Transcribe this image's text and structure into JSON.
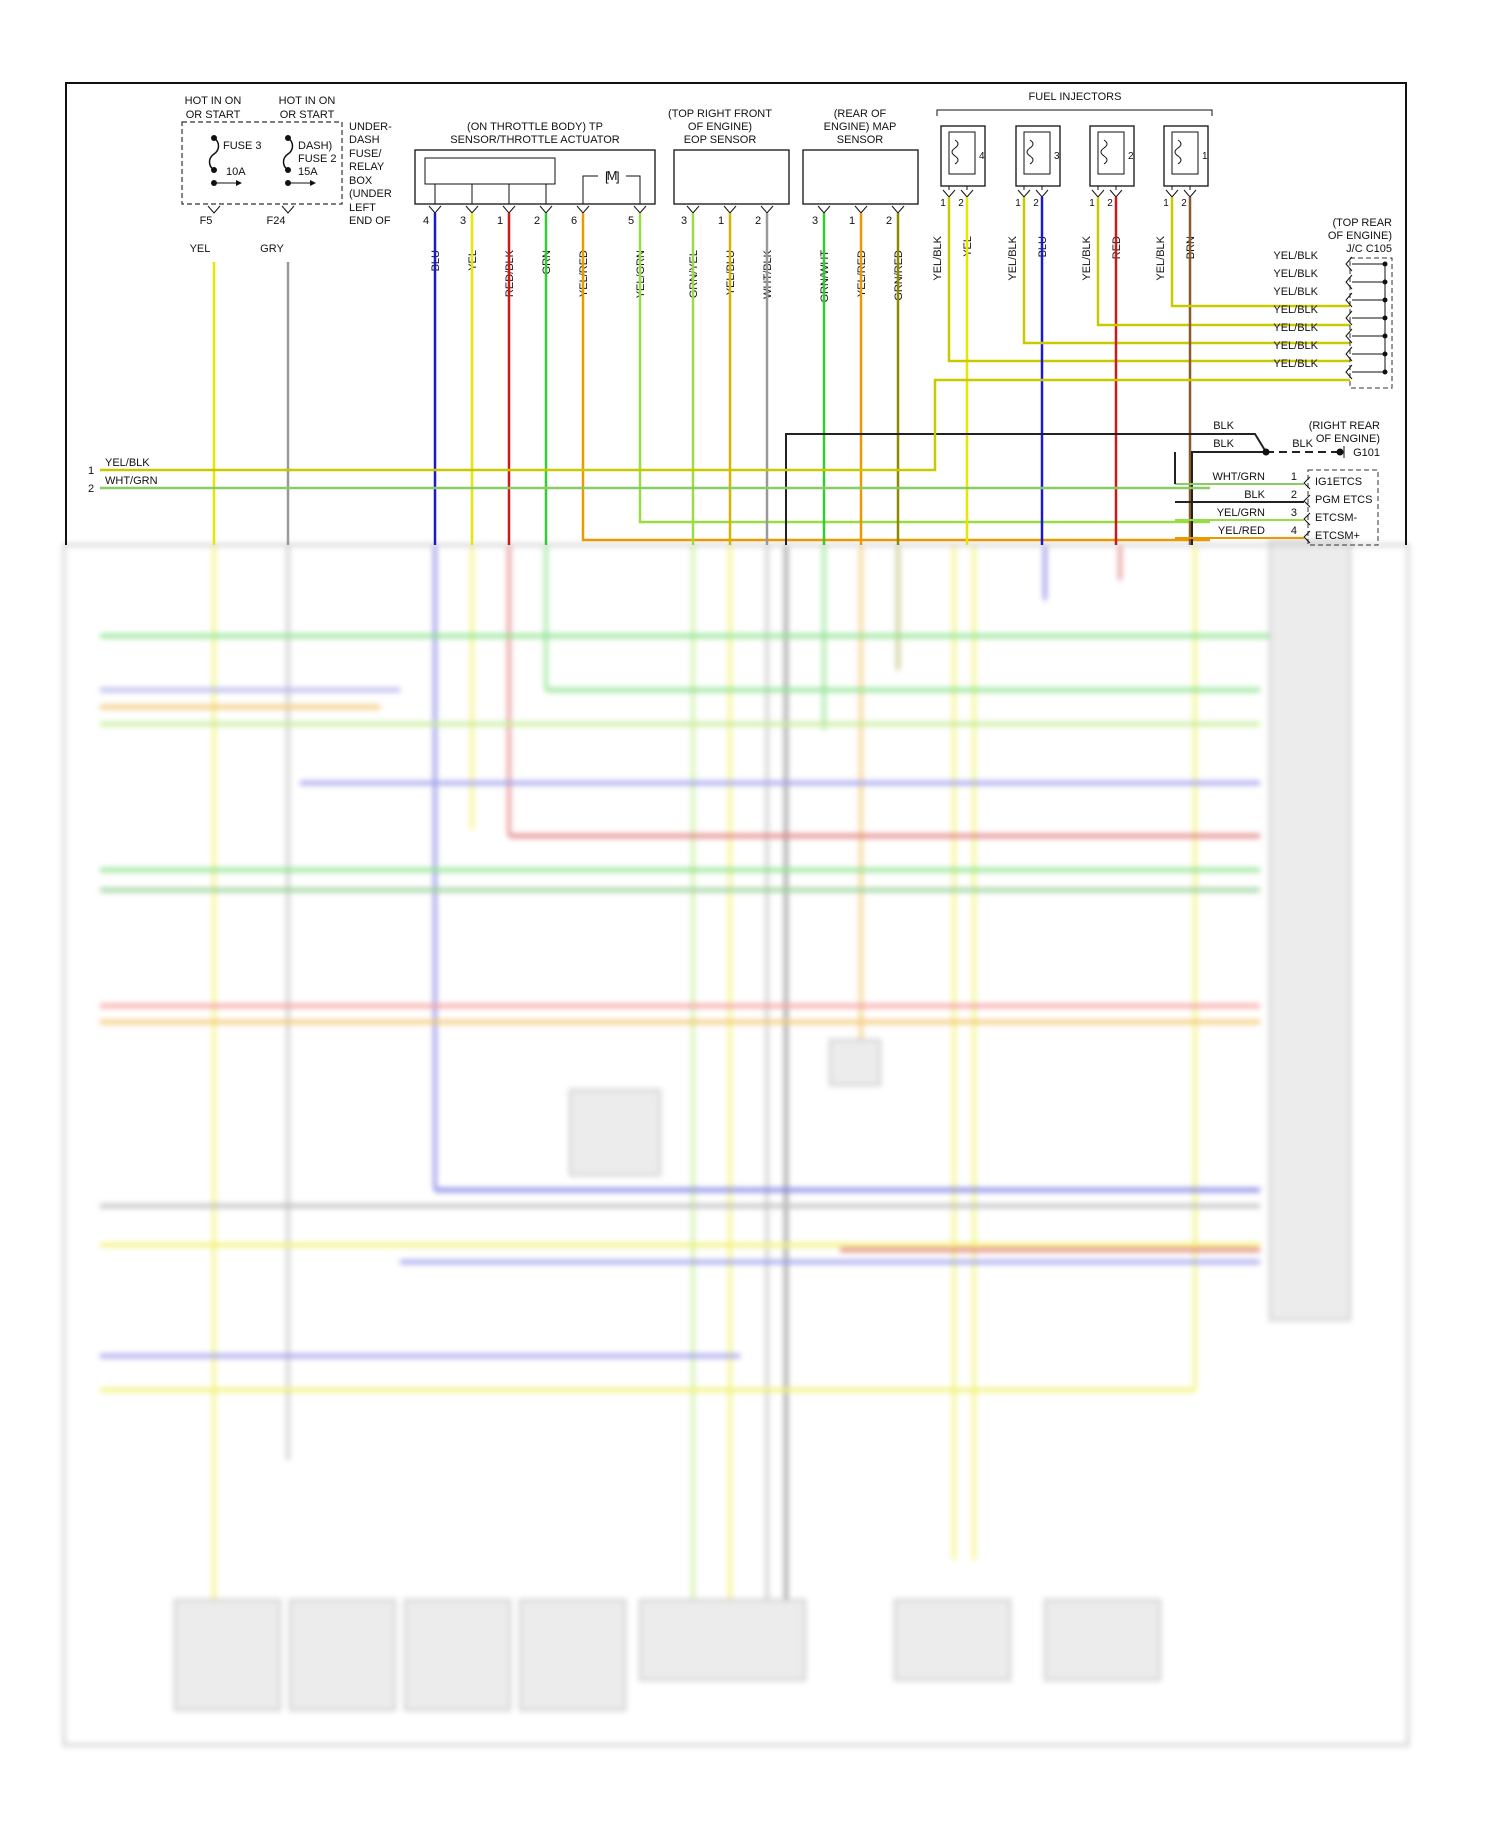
{
  "fuse_box": {
    "hot1": [
      "HOT IN ON",
      "OR START"
    ],
    "hot2": [
      "HOT IN ON",
      "OR START"
    ],
    "fuse3": [
      "FUSE 3",
      "10A"
    ],
    "fuse2": [
      "DASH)",
      "FUSE 2",
      "15A"
    ],
    "desc": [
      "UNDER-",
      "DASH",
      "FUSE/",
      "RELAY",
      "BOX",
      "(UNDER",
      "LEFT",
      "END OF"
    ],
    "pin1": "F5",
    "pin2": "F24",
    "wire1": "YEL",
    "wire2": "GRY"
  },
  "tp_sensor": {
    "title": [
      "(ON THROTTLE BODY) TP",
      "SENSOR/THROTTLE ACTUATOR"
    ],
    "motor": "M",
    "pins": [
      "4",
      "3",
      "1",
      "2",
      "6",
      "5"
    ],
    "wires": [
      "BLU",
      "YEL",
      "RED/BLK",
      "GRN",
      "YEL/RED",
      "YEL/GRN"
    ]
  },
  "eop_sensor": {
    "title": [
      "(TOP RIGHT FRONT",
      "OF ENGINE)",
      "EOP SENSOR"
    ],
    "pins": [
      "3",
      "1",
      "2"
    ],
    "wires": [
      "GRN/YEL",
      "YEL/BLU",
      "WHT/BLK"
    ]
  },
  "map_sensor": {
    "title": [
      "(REAR OF",
      "ENGINE) MAP",
      "SENSOR"
    ],
    "pins": [
      "3",
      "1",
      "2"
    ],
    "wires": [
      "GRN/WHT",
      "YEL/RED",
      "GRN/RED"
    ]
  },
  "injectors": {
    "title": "FUEL INJECTORS",
    "numbers": [
      "4",
      "3",
      "2",
      "1"
    ],
    "pins": [
      "1",
      "2"
    ],
    "wires": [
      "YEL/BLK",
      "YEL",
      "YEL/BLK",
      "BLU",
      "YEL/BLK",
      "RED",
      "YEL/BLK",
      "BRN"
    ]
  },
  "jc": {
    "title": [
      "(TOP REAR",
      "OF ENGINE)",
      "J/C C105"
    ],
    "wires": [
      "YEL/BLK",
      "YEL/BLK",
      "YEL/BLK",
      "YEL/BLK",
      "YEL/BLK",
      "YEL/BLK",
      "YEL/BLK"
    ]
  },
  "ground": {
    "title": [
      "(RIGHT REAR",
      "OF ENGINE)",
      "G101"
    ],
    "wires": [
      "BLK",
      "BLK",
      "BLK"
    ]
  },
  "left_wires": [
    {
      "num": "1",
      "label": "YEL/BLK"
    },
    {
      "num": "2",
      "label": "WHT/GRN"
    }
  ],
  "etcs": {
    "wires": [
      "WHT/GRN",
      "BLK",
      "YEL/GRN",
      "YEL/RED"
    ],
    "pins": [
      "1",
      "2",
      "3",
      "4"
    ],
    "labels": [
      "IG1ETCS",
      "PGM ETCS",
      "ETCSM-",
      "ETCSM+"
    ]
  },
  "colors": {
    "yel": "#e6e600",
    "blu": "#1a1acc",
    "red": "#cc1a1a",
    "grn": "#33cc33",
    "gry": "#999999",
    "blk": "#222222",
    "orange": "#e89a00",
    "ltgrn": "#99dd44",
    "frame": "#111111"
  }
}
